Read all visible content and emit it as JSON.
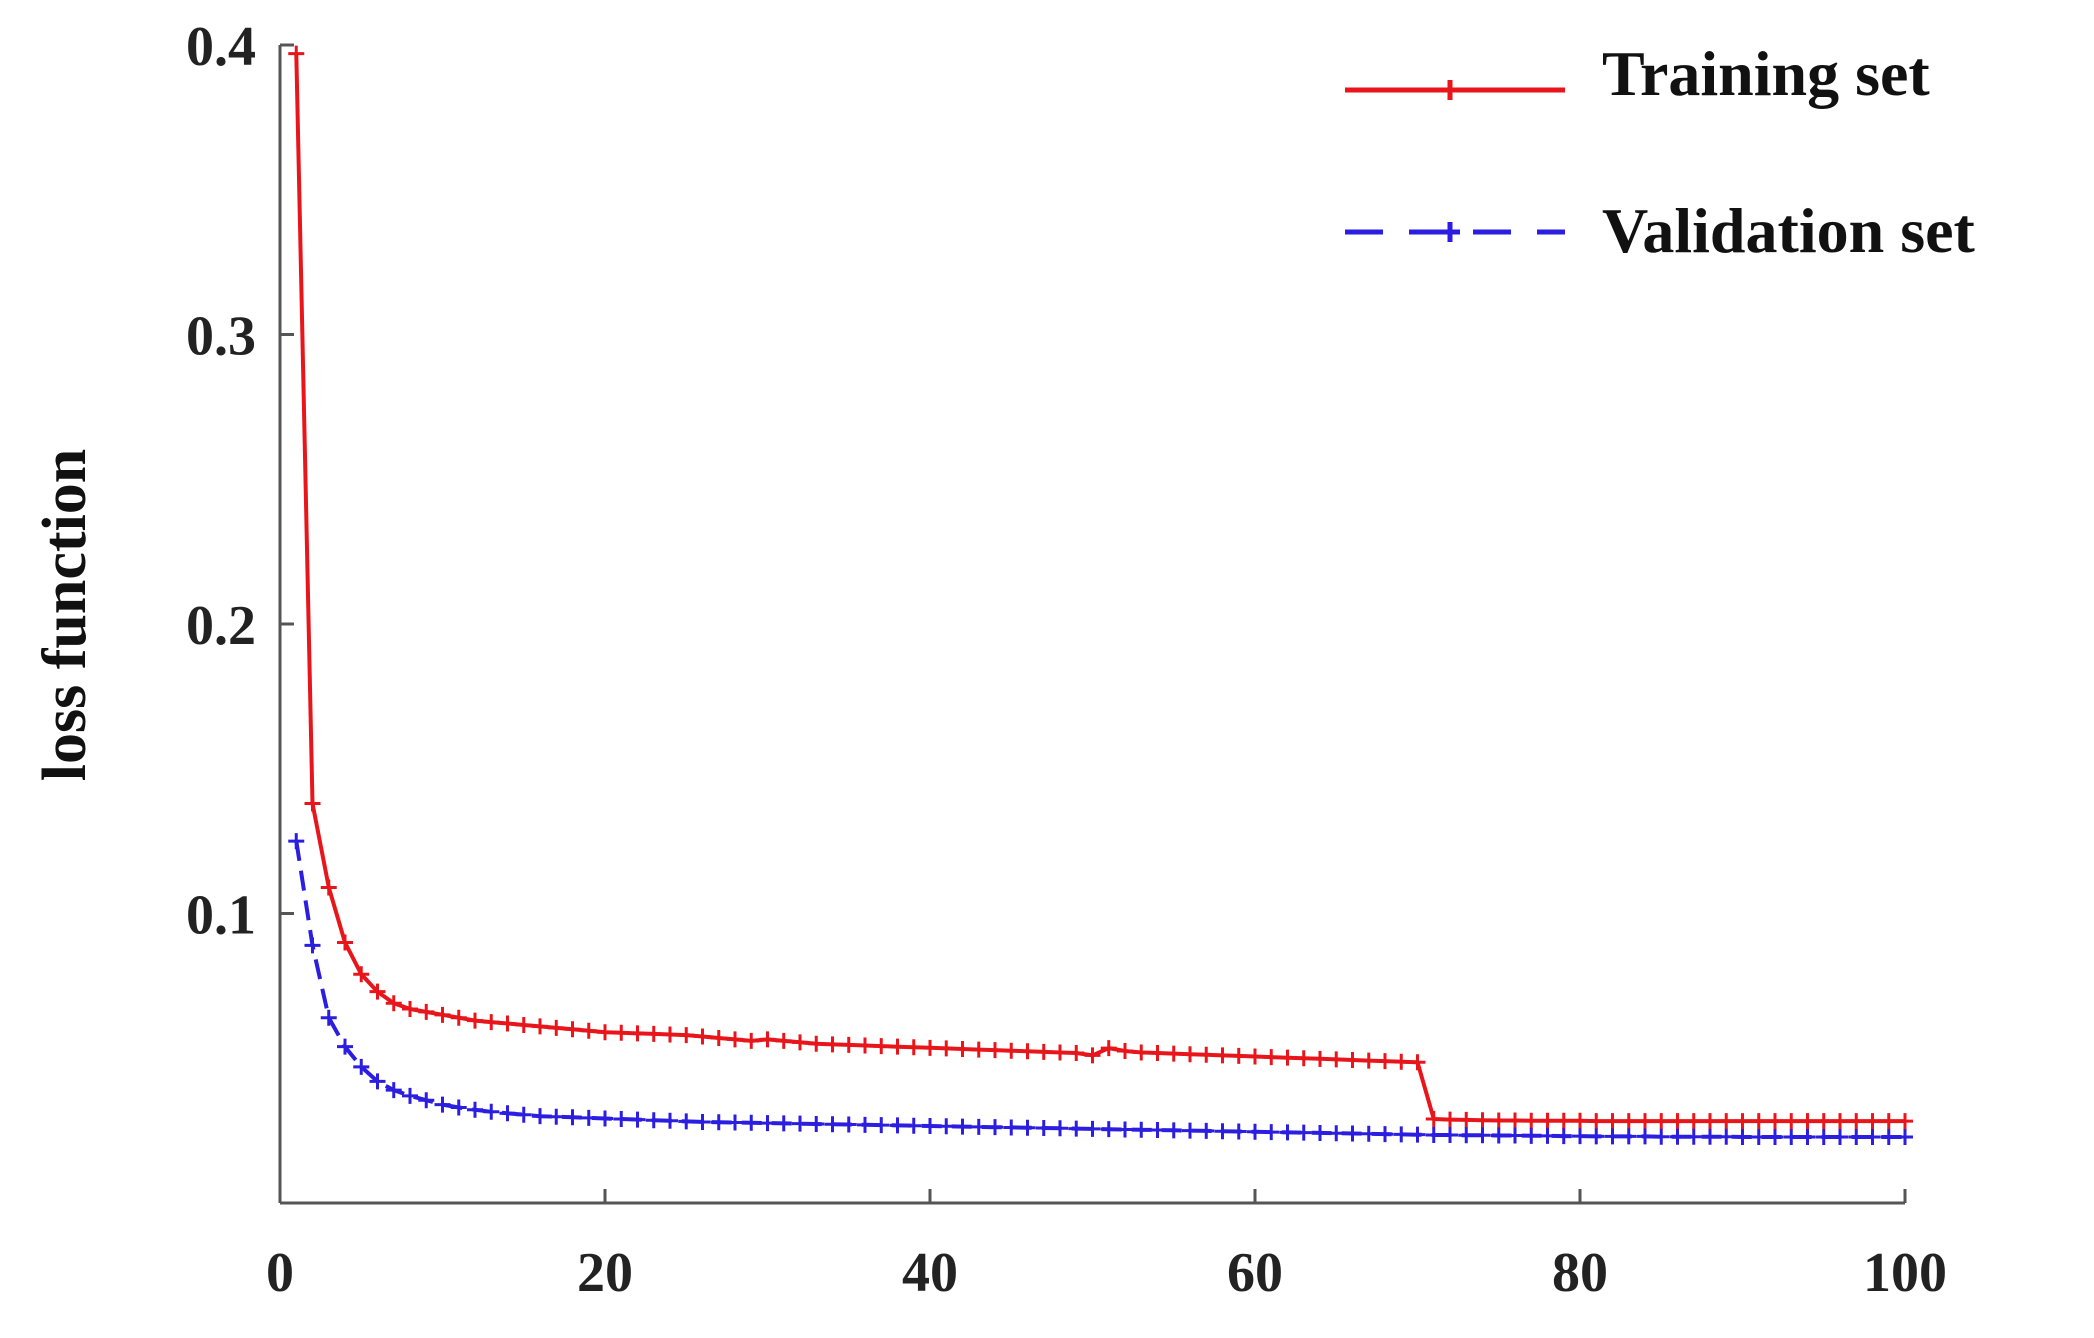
{
  "chart_data": {
    "type": "line",
    "title": "",
    "xlabel": "",
    "ylabel": "loss function",
    "xlim": [
      0,
      100
    ],
    "ylim": [
      0,
      0.4
    ],
    "xticks": [
      "0",
      "20",
      "40",
      "60",
      "80",
      "100"
    ],
    "yticks": [
      "0.1",
      "0.2",
      "0.3",
      "0.4"
    ],
    "grid": false,
    "legend_position": "top-right",
    "series": [
      {
        "name": "Training set",
        "color": "#e8161b",
        "line_style": "solid",
        "marker": "plus",
        "x": [
          1,
          2,
          3,
          4,
          5,
          6,
          7,
          8,
          9,
          10,
          11,
          12,
          13,
          14,
          15,
          16,
          17,
          18,
          19,
          20,
          21,
          22,
          23,
          24,
          25,
          26,
          27,
          28,
          29,
          30,
          31,
          32,
          33,
          34,
          35,
          36,
          37,
          38,
          39,
          40,
          41,
          42,
          43,
          44,
          45,
          46,
          47,
          48,
          49,
          50,
          51,
          52,
          53,
          54,
          55,
          56,
          57,
          58,
          59,
          60,
          61,
          62,
          63,
          64,
          65,
          66,
          67,
          68,
          69,
          70,
          71,
          72,
          73,
          74,
          75,
          76,
          77,
          78,
          79,
          80,
          81,
          82,
          83,
          84,
          85,
          86,
          87,
          88,
          89,
          90,
          91,
          92,
          93,
          94,
          95,
          96,
          97,
          98,
          99,
          100
        ],
        "y": [
          0.397,
          0.138,
          0.109,
          0.09,
          0.079,
          0.073,
          0.069,
          0.067,
          0.066,
          0.065,
          0.064,
          0.063,
          0.0625,
          0.062,
          0.0615,
          0.061,
          0.0605,
          0.06,
          0.0595,
          0.059,
          0.0588,
          0.0586,
          0.0584,
          0.0582,
          0.058,
          0.0575,
          0.057,
          0.0565,
          0.056,
          0.0565,
          0.056,
          0.0555,
          0.055,
          0.0548,
          0.0546,
          0.0544,
          0.0542,
          0.054,
          0.0538,
          0.0536,
          0.0534,
          0.0532,
          0.053,
          0.0528,
          0.0526,
          0.0524,
          0.0522,
          0.052,
          0.0518,
          0.051,
          0.0535,
          0.0525,
          0.052,
          0.0518,
          0.0516,
          0.0514,
          0.0512,
          0.051,
          0.0508,
          0.0506,
          0.0504,
          0.0502,
          0.05,
          0.0498,
          0.0496,
          0.0494,
          0.0492,
          0.049,
          0.0488,
          0.0486,
          0.029,
          0.0288,
          0.0287,
          0.0286,
          0.0285,
          0.0285,
          0.0284,
          0.0284,
          0.0284,
          0.0284,
          0.0283,
          0.0283,
          0.0283,
          0.0283,
          0.0283,
          0.0283,
          0.0283,
          0.0283,
          0.0283,
          0.0283,
          0.0283,
          0.0283,
          0.0283,
          0.0283,
          0.0283,
          0.0283,
          0.0283,
          0.0283,
          0.0283,
          0.0283
        ]
      },
      {
        "name": "Validation set",
        "color": "#2b1ee0",
        "line_style": "dashed",
        "marker": "plus",
        "x": [
          1,
          2,
          3,
          4,
          5,
          6,
          7,
          8,
          9,
          10,
          11,
          12,
          13,
          14,
          15,
          16,
          17,
          18,
          19,
          20,
          21,
          22,
          23,
          24,
          25,
          26,
          27,
          28,
          29,
          30,
          31,
          32,
          33,
          34,
          35,
          36,
          37,
          38,
          39,
          40,
          41,
          42,
          43,
          44,
          45,
          46,
          47,
          48,
          49,
          50,
          51,
          52,
          53,
          54,
          55,
          56,
          57,
          58,
          59,
          60,
          61,
          62,
          63,
          64,
          65,
          66,
          67,
          68,
          69,
          70,
          71,
          72,
          73,
          74,
          75,
          76,
          77,
          78,
          79,
          80,
          81,
          82,
          83,
          84,
          85,
          86,
          87,
          88,
          89,
          90,
          91,
          92,
          93,
          94,
          95,
          96,
          97,
          98,
          99,
          100
        ],
        "y": [
          0.125,
          0.089,
          0.064,
          0.054,
          0.047,
          0.042,
          0.039,
          0.037,
          0.0355,
          0.034,
          0.033,
          0.0322,
          0.0315,
          0.031,
          0.0305,
          0.03,
          0.0298,
          0.0296,
          0.0294,
          0.0292,
          0.029,
          0.0288,
          0.0286,
          0.0284,
          0.0282,
          0.028,
          0.0279,
          0.0278,
          0.0277,
          0.0276,
          0.0275,
          0.0274,
          0.0273,
          0.0272,
          0.0271,
          0.027,
          0.0269,
          0.0268,
          0.0267,
          0.0266,
          0.0265,
          0.0264,
          0.0263,
          0.0262,
          0.0261,
          0.026,
          0.0259,
          0.0258,
          0.0257,
          0.0256,
          0.0255,
          0.0254,
          0.0253,
          0.0252,
          0.0251,
          0.025,
          0.0249,
          0.0248,
          0.0247,
          0.0246,
          0.0245,
          0.0244,
          0.0243,
          0.0242,
          0.0241,
          0.024,
          0.0239,
          0.0238,
          0.0237,
          0.0236,
          0.0235,
          0.0235,
          0.0234,
          0.0234,
          0.0233,
          0.0233,
          0.0232,
          0.0232,
          0.0231,
          0.0231,
          0.023,
          0.023,
          0.023,
          0.023,
          0.0229,
          0.0229,
          0.0229,
          0.0229,
          0.0229,
          0.0228,
          0.0228,
          0.0228,
          0.0228,
          0.0228,
          0.0228,
          0.0228,
          0.0228,
          0.0228,
          0.0228,
          0.0228
        ]
      }
    ]
  }
}
